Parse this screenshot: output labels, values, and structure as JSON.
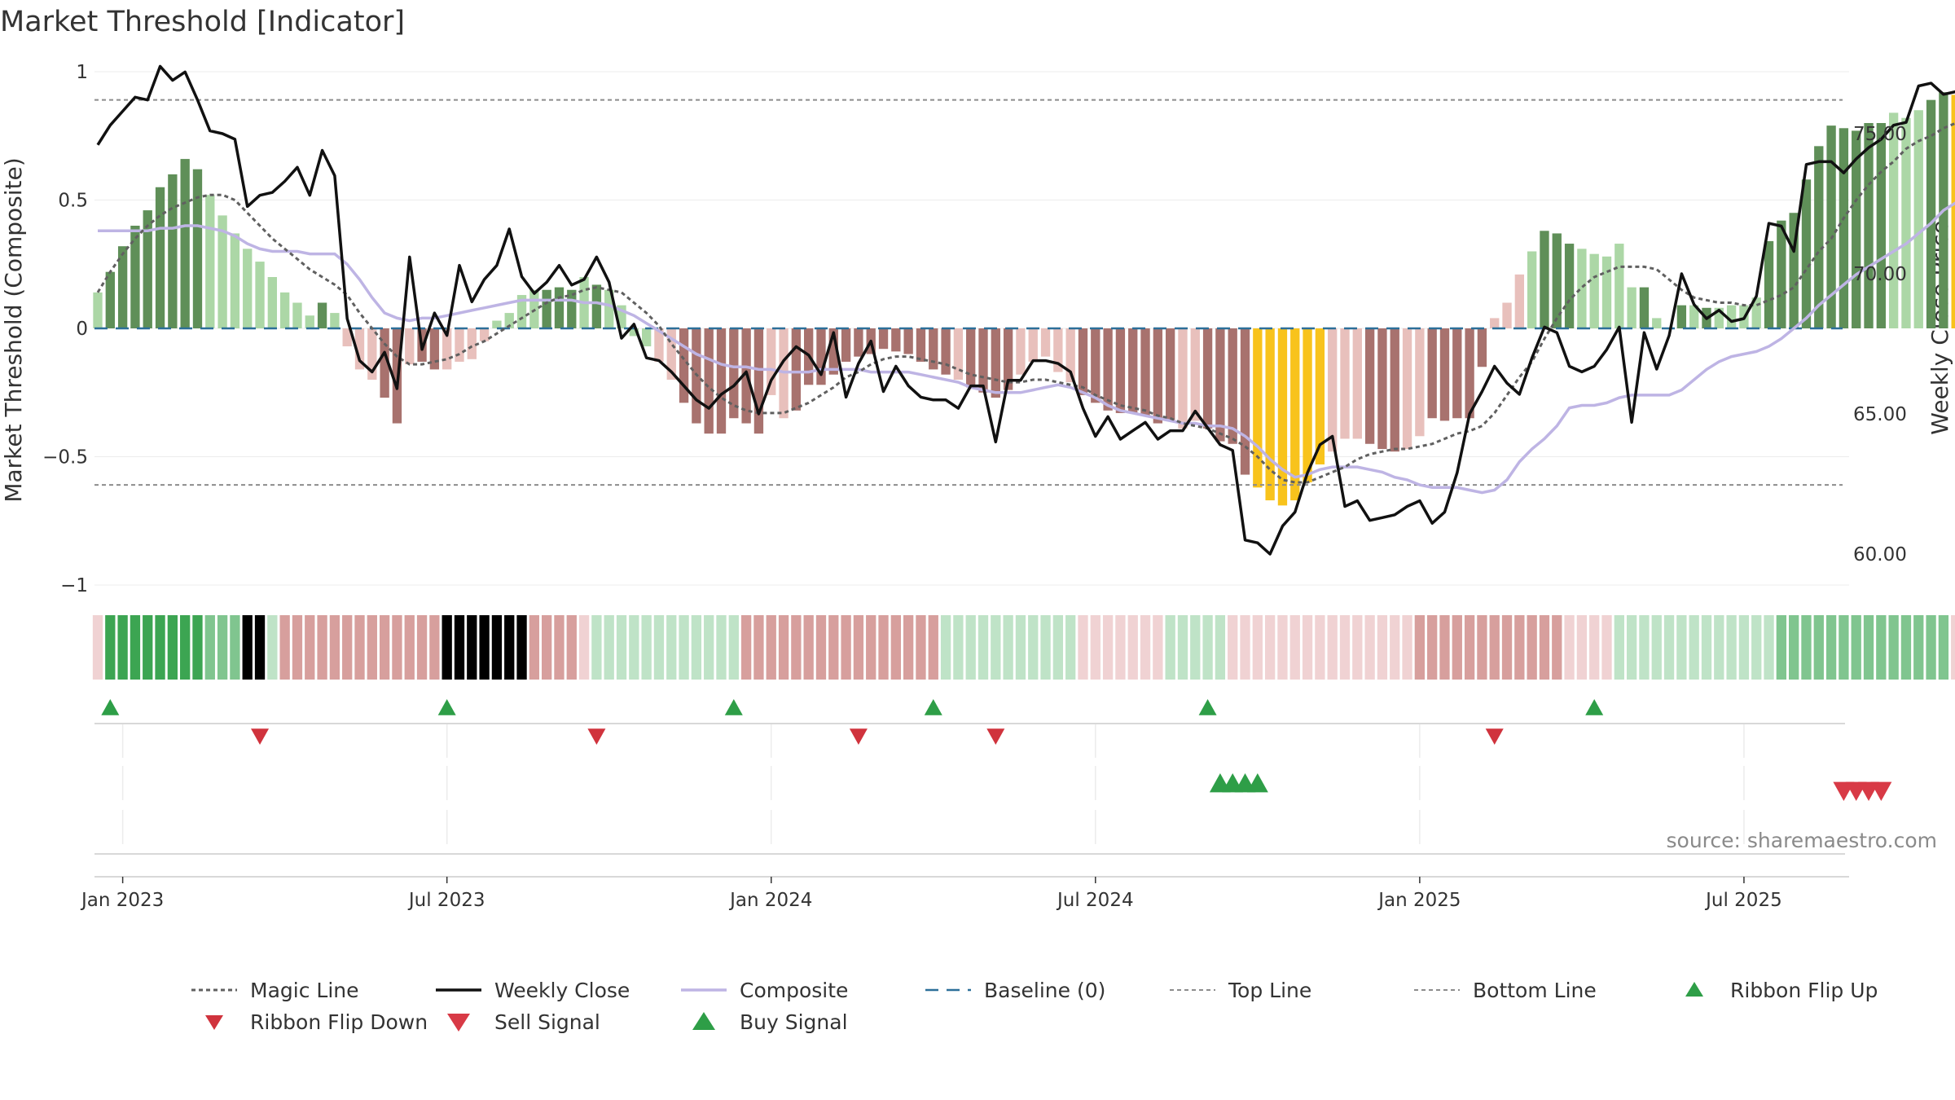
{
  "chart_data": {
    "type": "bar",
    "title": "Market Threshold [Indicator]",
    "ylabel": "Market Threshold (Composite)",
    "y2label": "Weekly Close Price",
    "ylim": [
      -1,
      1
    ],
    "y2lim": [
      57.0,
      77.3
    ],
    "yticks": [
      "1",
      "0.5",
      "0",
      "−0.5",
      "−1"
    ],
    "y2ticks": [
      "75.00",
      "70.00",
      "65.00",
      "60.00"
    ],
    "xticks": [
      {
        "label": "Jan 2023",
        "week": 2
      },
      {
        "label": "Jul 2023",
        "week": 28
      },
      {
        "label": "Jan 2024",
        "week": 54
      },
      {
        "label": "Jul 2024",
        "week": 80
      },
      {
        "label": "Jan 2025",
        "week": 106
      },
      {
        "label": "Jul 2025",
        "week": 132
      }
    ],
    "grid": true,
    "legend_position": "bottom",
    "first_week": "2022-12-18",
    "top_line": 0.89,
    "bottom_line": -0.61,
    "composite_bars": [
      0.14,
      0.22,
      0.32,
      0.4,
      0.46,
      0.55,
      0.6,
      0.66,
      0.62,
      0.52,
      0.44,
      0.37,
      0.31,
      0.26,
      0.2,
      0.14,
      0.1,
      0.05,
      0.1,
      0.06,
      -0.07,
      -0.16,
      -0.2,
      -0.27,
      -0.37,
      -0.14,
      -0.13,
      -0.16,
      -0.16,
      -0.13,
      -0.12,
      -0.05,
      0.03,
      0.06,
      0.13,
      0.15,
      0.15,
      0.16,
      0.15,
      0.2,
      0.17,
      0.15,
      0.09,
      -0.03,
      -0.07,
      -0.13,
      -0.2,
      -0.29,
      -0.37,
      -0.41,
      -0.41,
      -0.35,
      -0.37,
      -0.41,
      -0.26,
      -0.35,
      -0.32,
      -0.22,
      -0.22,
      -0.18,
      -0.13,
      -0.11,
      -0.1,
      -0.08,
      -0.09,
      -0.1,
      -0.13,
      -0.16,
      -0.18,
      -0.2,
      -0.23,
      -0.25,
      -0.27,
      -0.24,
      -0.18,
      -0.13,
      -0.11,
      -0.17,
      -0.21,
      -0.26,
      -0.29,
      -0.32,
      -0.33,
      -0.33,
      -0.34,
      -0.37,
      -0.36,
      -0.39,
      -0.36,
      -0.39,
      -0.44,
      -0.45,
      -0.57,
      -0.62,
      -0.67,
      -0.69,
      -0.67,
      -0.6,
      -0.53,
      -0.48,
      -0.43,
      -0.43,
      -0.45,
      -0.47,
      -0.48,
      -0.47,
      -0.42,
      -0.35,
      -0.36,
      -0.35,
      -0.35,
      -0.15,
      0.04,
      0.1,
      0.21,
      0.3,
      0.38,
      0.37,
      0.33,
      0.31,
      0.29,
      0.28,
      0.33,
      0.16,
      0.16,
      0.04,
      0.0,
      0.09,
      0.09,
      0.08,
      0.08,
      0.09,
      0.09,
      0.12,
      0.34,
      0.42,
      0.45,
      0.58,
      0.71,
      0.79,
      0.78,
      0.77,
      0.8,
      0.8,
      0.84,
      0.82,
      0.85,
      0.89,
      0.92,
      0.91,
      0.9,
      0.9
    ],
    "bar_color_classes": "LMMMMMMMMLLLLLLLLLMLdddDDdDDddddLLLLMMMLMLLLLddDDDDDDDddDDDDDDDDDDDDDdDDDDdddddDDDDDDDDddDDDDOOOOOOdddDDDddDDDDDdddLMMMLLLLLMLLMLMLLLLMMMMMMMMMMLLLMMOOOOOOO",
    "weekly_close": [
      74.6,
      75.3,
      75.8,
      76.3,
      76.2,
      77.4,
      76.9,
      77.2,
      76.2,
      75.1,
      75.0,
      74.8,
      72.4,
      72.8,
      72.9,
      73.3,
      73.8,
      72.8,
      74.4,
      73.5,
      68.4,
      66.9,
      66.5,
      67.2,
      65.9,
      70.6,
      67.3,
      68.6,
      67.8,
      70.3,
      69.0,
      69.8,
      70.3,
      71.6,
      69.9,
      69.3,
      69.7,
      70.3,
      69.6,
      69.8,
      70.6,
      69.7,
      67.7,
      68.2,
      67.0,
      66.9,
      66.5,
      66.0,
      65.5,
      65.2,
      65.7,
      66.0,
      66.5,
      65.0,
      66.2,
      66.9,
      67.4,
      67.1,
      66.4,
      67.9,
      65.6,
      66.8,
      67.6,
      65.8,
      66.7,
      66.0,
      65.6,
      65.5,
      65.5,
      65.2,
      66.0,
      66.0,
      64.0,
      66.2,
      66.2,
      66.9,
      66.9,
      66.8,
      66.5,
      65.2,
      64.2,
      64.9,
      64.1,
      64.4,
      64.7,
      64.1,
      64.4,
      64.4,
      65.1,
      64.5,
      63.9,
      63.7,
      60.5,
      60.4,
      60.0,
      61.0,
      61.5,
      62.9,
      63.9,
      64.2,
      61.7,
      61.9,
      61.2,
      61.3,
      61.4,
      61.7,
      61.9,
      61.1,
      61.5,
      62.9,
      65.0,
      65.8,
      66.7,
      66.1,
      65.7,
      67.0,
      68.1,
      67.9,
      66.7,
      66.5,
      66.7,
      67.3,
      68.1,
      64.7,
      67.9,
      66.6,
      67.8,
      70.0,
      68.9,
      68.4,
      68.7,
      68.3,
      68.4,
      69.2,
      71.8,
      71.7,
      70.8,
      73.9,
      74.0,
      74.0,
      73.6,
      74.1,
      74.5,
      74.8,
      75.3,
      75.4,
      76.7,
      76.8,
      76.4,
      76.5
    ],
    "magic_line": [
      0.14,
      0.22,
      0.29,
      0.35,
      0.4,
      0.44,
      0.47,
      0.49,
      0.51,
      0.52,
      0.52,
      0.5,
      0.45,
      0.4,
      0.35,
      0.31,
      0.27,
      0.23,
      0.2,
      0.17,
      0.13,
      0.06,
      0.0,
      -0.06,
      -0.11,
      -0.14,
      -0.14,
      -0.13,
      -0.12,
      -0.1,
      -0.07,
      -0.05,
      -0.02,
      0.01,
      0.04,
      0.07,
      0.1,
      0.12,
      0.13,
      0.15,
      0.16,
      0.15,
      0.14,
      0.1,
      0.06,
      0.01,
      -0.06,
      -0.12,
      -0.18,
      -0.23,
      -0.27,
      -0.3,
      -0.32,
      -0.33,
      -0.33,
      -0.33,
      -0.31,
      -0.29,
      -0.26,
      -0.23,
      -0.19,
      -0.17,
      -0.14,
      -0.12,
      -0.11,
      -0.11,
      -0.12,
      -0.13,
      -0.14,
      -0.16,
      -0.18,
      -0.19,
      -0.2,
      -0.21,
      -0.21,
      -0.2,
      -0.2,
      -0.21,
      -0.22,
      -0.23,
      -0.26,
      -0.28,
      -0.3,
      -0.31,
      -0.32,
      -0.34,
      -0.35,
      -0.37,
      -0.38,
      -0.39,
      -0.41,
      -0.43,
      -0.46,
      -0.5,
      -0.55,
      -0.59,
      -0.6,
      -0.6,
      -0.58,
      -0.56,
      -0.54,
      -0.51,
      -0.49,
      -0.48,
      -0.47,
      -0.47,
      -0.46,
      -0.45,
      -0.43,
      -0.41,
      -0.4,
      -0.38,
      -0.33,
      -0.26,
      -0.19,
      -0.13,
      -0.04,
      0.04,
      0.11,
      0.16,
      0.2,
      0.22,
      0.24,
      0.24,
      0.24,
      0.23,
      0.19,
      0.15,
      0.12,
      0.11,
      0.1,
      0.1,
      0.09,
      0.09,
      0.11,
      0.13,
      0.16,
      0.23,
      0.3,
      0.35,
      0.43,
      0.5,
      0.56,
      0.61,
      0.65,
      0.7,
      0.73,
      0.75,
      0.78,
      0.8,
      0.83,
      0.85,
      0.85,
      0.86
    ],
    "composite_line": [
      0.38,
      0.38,
      0.38,
      0.38,
      0.38,
      0.39,
      0.39,
      0.4,
      0.4,
      0.39,
      0.38,
      0.36,
      0.33,
      0.31,
      0.3,
      0.3,
      0.3,
      0.29,
      0.29,
      0.29,
      0.25,
      0.19,
      0.12,
      0.06,
      0.04,
      0.03,
      0.04,
      0.04,
      0.05,
      0.06,
      0.07,
      0.08,
      0.09,
      0.1,
      0.11,
      0.11,
      0.11,
      0.11,
      0.11,
      0.1,
      0.1,
      0.09,
      0.07,
      0.05,
      0.02,
      -0.01,
      -0.04,
      -0.07,
      -0.1,
      -0.12,
      -0.14,
      -0.15,
      -0.15,
      -0.16,
      -0.16,
      -0.17,
      -0.17,
      -0.17,
      -0.16,
      -0.16,
      -0.16,
      -0.16,
      -0.17,
      -0.17,
      -0.17,
      -0.17,
      -0.18,
      -0.19,
      -0.2,
      -0.21,
      -0.23,
      -0.24,
      -0.25,
      -0.25,
      -0.25,
      -0.24,
      -0.23,
      -0.22,
      -0.23,
      -0.25,
      -0.27,
      -0.3,
      -0.32,
      -0.33,
      -0.34,
      -0.35,
      -0.36,
      -0.37,
      -0.37,
      -0.38,
      -0.38,
      -0.39,
      -0.42,
      -0.46,
      -0.51,
      -0.55,
      -0.58,
      -0.57,
      -0.55,
      -0.54,
      -0.54,
      -0.54,
      -0.55,
      -0.56,
      -0.58,
      -0.59,
      -0.61,
      -0.62,
      -0.62,
      -0.62,
      -0.63,
      -0.64,
      -0.63,
      -0.59,
      -0.52,
      -0.47,
      -0.43,
      -0.38,
      -0.31,
      -0.3,
      -0.3,
      -0.29,
      -0.27,
      -0.26,
      -0.26,
      -0.26,
      -0.26,
      -0.24,
      -0.2,
      -0.16,
      -0.13,
      -0.11,
      -0.1,
      -0.09,
      -0.07,
      -0.04,
      0.0,
      0.04,
      0.09,
      0.13,
      0.17,
      0.21,
      0.24,
      0.27,
      0.3,
      0.33,
      0.37,
      0.41,
      0.46,
      0.49,
      0.52,
      0.55
    ],
    "ribbon_classes": "pGGGGGGGGMMMLLldddddddddddddDDDDDDDddddpllllllllllllddddddddddddddddlllllllllllppppppplllllpppppppppppppppddddddddddddpppplllllllllllllMMMMMMMMMMMMMMppppppppMMMMMMMMMMMMMMMMM",
    "ribbon_flip_up": [
      1,
      28,
      51,
      67,
      89,
      120
    ],
    "ribbon_flip_down": [
      13,
      40,
      61,
      72,
      112
    ],
    "buy_signal": [
      90,
      91,
      92,
      93
    ],
    "sell_signal": [
      140,
      141,
      142,
      143
    ],
    "colors": {
      "D": "#a8726e",
      "d": "#e8c0bc",
      "M": "#5f8f58",
      "L": "#acd7a6",
      "O": "#f8c31c",
      "rG": "#3ca552",
      "rM": "#80c58f",
      "rl": "#bfe3c7",
      "rd": "#d79f9d",
      "rp": "#f0d2d3",
      "close": "#111111",
      "magic": "#606060",
      "composite": "#beb4e4",
      "baseline": "#2c6f99",
      "flip_up": "#2e9e47",
      "flip_down": "#d0333d",
      "buy": "#2e9e47",
      "sell": "#d83a46"
    },
    "source": "source: sharemaestro.com",
    "legend": [
      {
        "label": "Magic Line",
        "key": "magic"
      },
      {
        "label": "Weekly Close",
        "key": "close"
      },
      {
        "label": "Composite",
        "key": "composite"
      },
      {
        "label": "Baseline (0)",
        "key": "baseline"
      },
      {
        "label": "Top Line",
        "key": "top"
      },
      {
        "label": "Bottom Line",
        "key": "bottom"
      },
      {
        "label": "Ribbon Flip Up",
        "key": "flipup"
      },
      {
        "label": "Ribbon Flip Down",
        "key": "flipdown"
      },
      {
        "label": "Sell Signal",
        "key": "sell"
      },
      {
        "label": "Buy Signal",
        "key": "buy"
      }
    ]
  }
}
